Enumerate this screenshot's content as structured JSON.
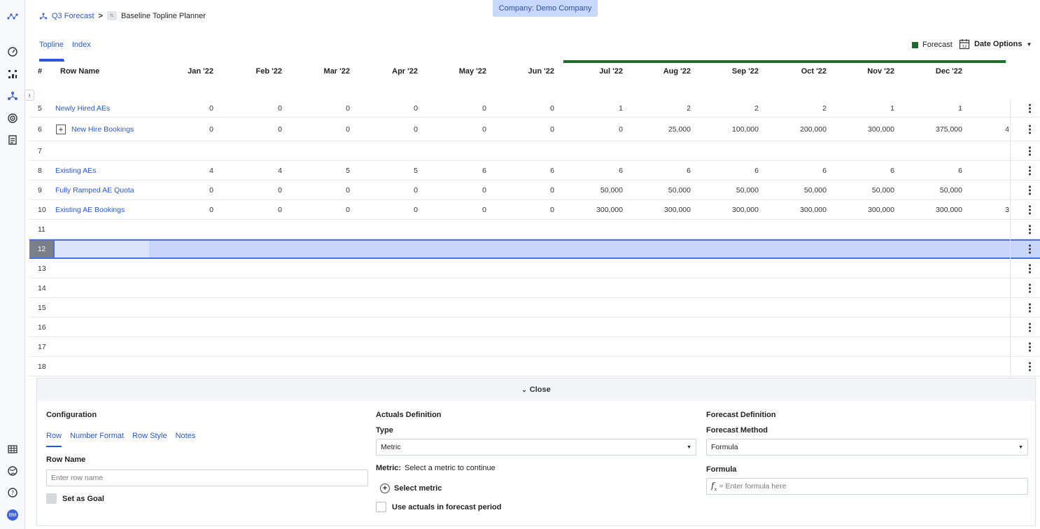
{
  "header": {
    "company": "Company: Demo Company",
    "breadcrumb_root": "Q3 Forecast",
    "breadcrumb_sep": ">",
    "breadcrumb_badge": "TL",
    "breadcrumb_current": "Baseline Topline Planner"
  },
  "tabs": [
    {
      "label": "Topline",
      "active": true
    },
    {
      "label": "Index",
      "active": false
    }
  ],
  "legend": {
    "forecast_label": "Forecast",
    "forecast_color": "#1e6b2a"
  },
  "date_options": {
    "label": "Date Options",
    "icon_text": "12"
  },
  "grid": {
    "col_hash": "#",
    "col_row_name": "Row Name",
    "months": [
      "Jan '22",
      "Feb '22",
      "Mar '22",
      "Apr '22",
      "May '22",
      "Jun '22",
      "Jul '22",
      "Aug '22",
      "Sep '22",
      "Oct '22",
      "Nov '22",
      "Dec '22"
    ],
    "rows": [
      {
        "idx": "5",
        "name": "Newly Hired AEs",
        "values": [
          "0",
          "0",
          "0",
          "0",
          "0",
          "0",
          "1",
          "2",
          "2",
          "2",
          "1",
          "1"
        ],
        "overflow": ""
      },
      {
        "idx": "6",
        "name": "New Hire Bookings",
        "expandable": true,
        "values": [
          "0",
          "0",
          "0",
          "0",
          "0",
          "0",
          "0",
          "25,000",
          "100,000",
          "200,000",
          "300,000",
          "375,000"
        ],
        "overflow": "4"
      },
      {
        "idx": "7",
        "name": "",
        "values": []
      },
      {
        "idx": "8",
        "name": "Existing AEs",
        "values": [
          "4",
          "4",
          "5",
          "5",
          "6",
          "6",
          "6",
          "6",
          "6",
          "6",
          "6",
          "6"
        ],
        "overflow": ""
      },
      {
        "idx": "9",
        "name": "Fully Ramped AE Quota",
        "values": [
          "0",
          "0",
          "0",
          "0",
          "0",
          "0",
          "50,000",
          "50,000",
          "50,000",
          "50,000",
          "50,000",
          "50,000"
        ],
        "overflow": ""
      },
      {
        "idx": "10",
        "name": "Existing AE Bookings",
        "values": [
          "0",
          "0",
          "0",
          "0",
          "0",
          "0",
          "300,000",
          "300,000",
          "300,000",
          "300,000",
          "300,000",
          "300,000"
        ],
        "overflow": "3"
      },
      {
        "idx": "11",
        "name": "",
        "values": []
      },
      {
        "idx": "12",
        "name": "",
        "values": [],
        "selected": true
      },
      {
        "idx": "13",
        "name": "",
        "values": []
      },
      {
        "idx": "14",
        "name": "",
        "values": []
      },
      {
        "idx": "15",
        "name": "",
        "values": []
      },
      {
        "idx": "16",
        "name": "",
        "values": []
      },
      {
        "idx": "17",
        "name": "",
        "values": []
      },
      {
        "idx": "18",
        "name": "",
        "values": []
      }
    ]
  },
  "panel": {
    "close_label": "Close",
    "configuration": {
      "title": "Configuration",
      "tabs": [
        "Row",
        "Number Format",
        "Row Style",
        "Notes"
      ],
      "row_name_label": "Row Name",
      "row_name_placeholder": "Enter row name",
      "goal_label": "Set as Goal"
    },
    "actuals": {
      "title": "Actuals Definition",
      "type_label": "Type",
      "type_value": "Metric",
      "metric_label": "Metric:",
      "metric_hint": "Select a metric to continue",
      "select_metric": "Select metric",
      "use_actuals": "Use actuals in forecast period"
    },
    "forecast": {
      "title": "Forecast Definition",
      "method_label": "Forecast Method",
      "method_value": "Formula",
      "formula_label": "Formula",
      "formula_placeholder": "= Enter formula here"
    }
  }
}
